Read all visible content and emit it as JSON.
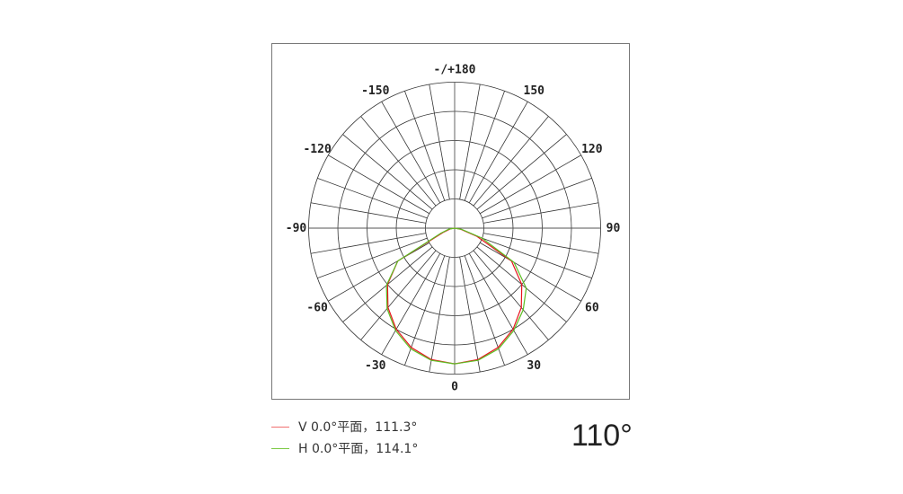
{
  "chart_data": {
    "type": "polar",
    "angle_labels": [
      "-/+180",
      "150",
      "120",
      "90",
      "60",
      "30",
      "0",
      "-30",
      "-60",
      "-90",
      "-120",
      "-150"
    ],
    "angle_label_values": [
      180,
      150,
      120,
      90,
      60,
      30,
      0,
      -30,
      -60,
      -90,
      -120,
      -150
    ],
    "angles": [
      -90,
      -80,
      -70,
      -60,
      -50,
      -40,
      -30,
      -20,
      -10,
      0,
      10,
      20,
      30,
      40,
      50,
      60,
      70,
      80,
      90
    ],
    "rlim": [
      0,
      1
    ],
    "grid": true,
    "series": [
      {
        "name": "V 0.0°平面，111.3°",
        "color": "#e8141e",
        "values": [
          0,
          0.03,
          0.08,
          0.45,
          0.6,
          0.71,
          0.8,
          0.87,
          0.915,
          0.93,
          0.915,
          0.87,
          0.8,
          0.71,
          0.6,
          0.45,
          0.16,
          0.04,
          0
        ]
      },
      {
        "name": "H 0.0°平面，114.1°",
        "color": "#5cbf24",
        "values": [
          0,
          0.04,
          0.1,
          0.45,
          0.61,
          0.72,
          0.81,
          0.88,
          0.92,
          0.93,
          0.92,
          0.88,
          0.81,
          0.73,
          0.64,
          0.47,
          0.2,
          0.05,
          0
        ]
      }
    ]
  },
  "legend": [
    {
      "label": "V 0.0°平面，111.3°",
      "color": "#f07070"
    },
    {
      "label": "H 0.0°平面，114.1°",
      "color": "#7ac943"
    }
  ],
  "beam_angle": "110°"
}
